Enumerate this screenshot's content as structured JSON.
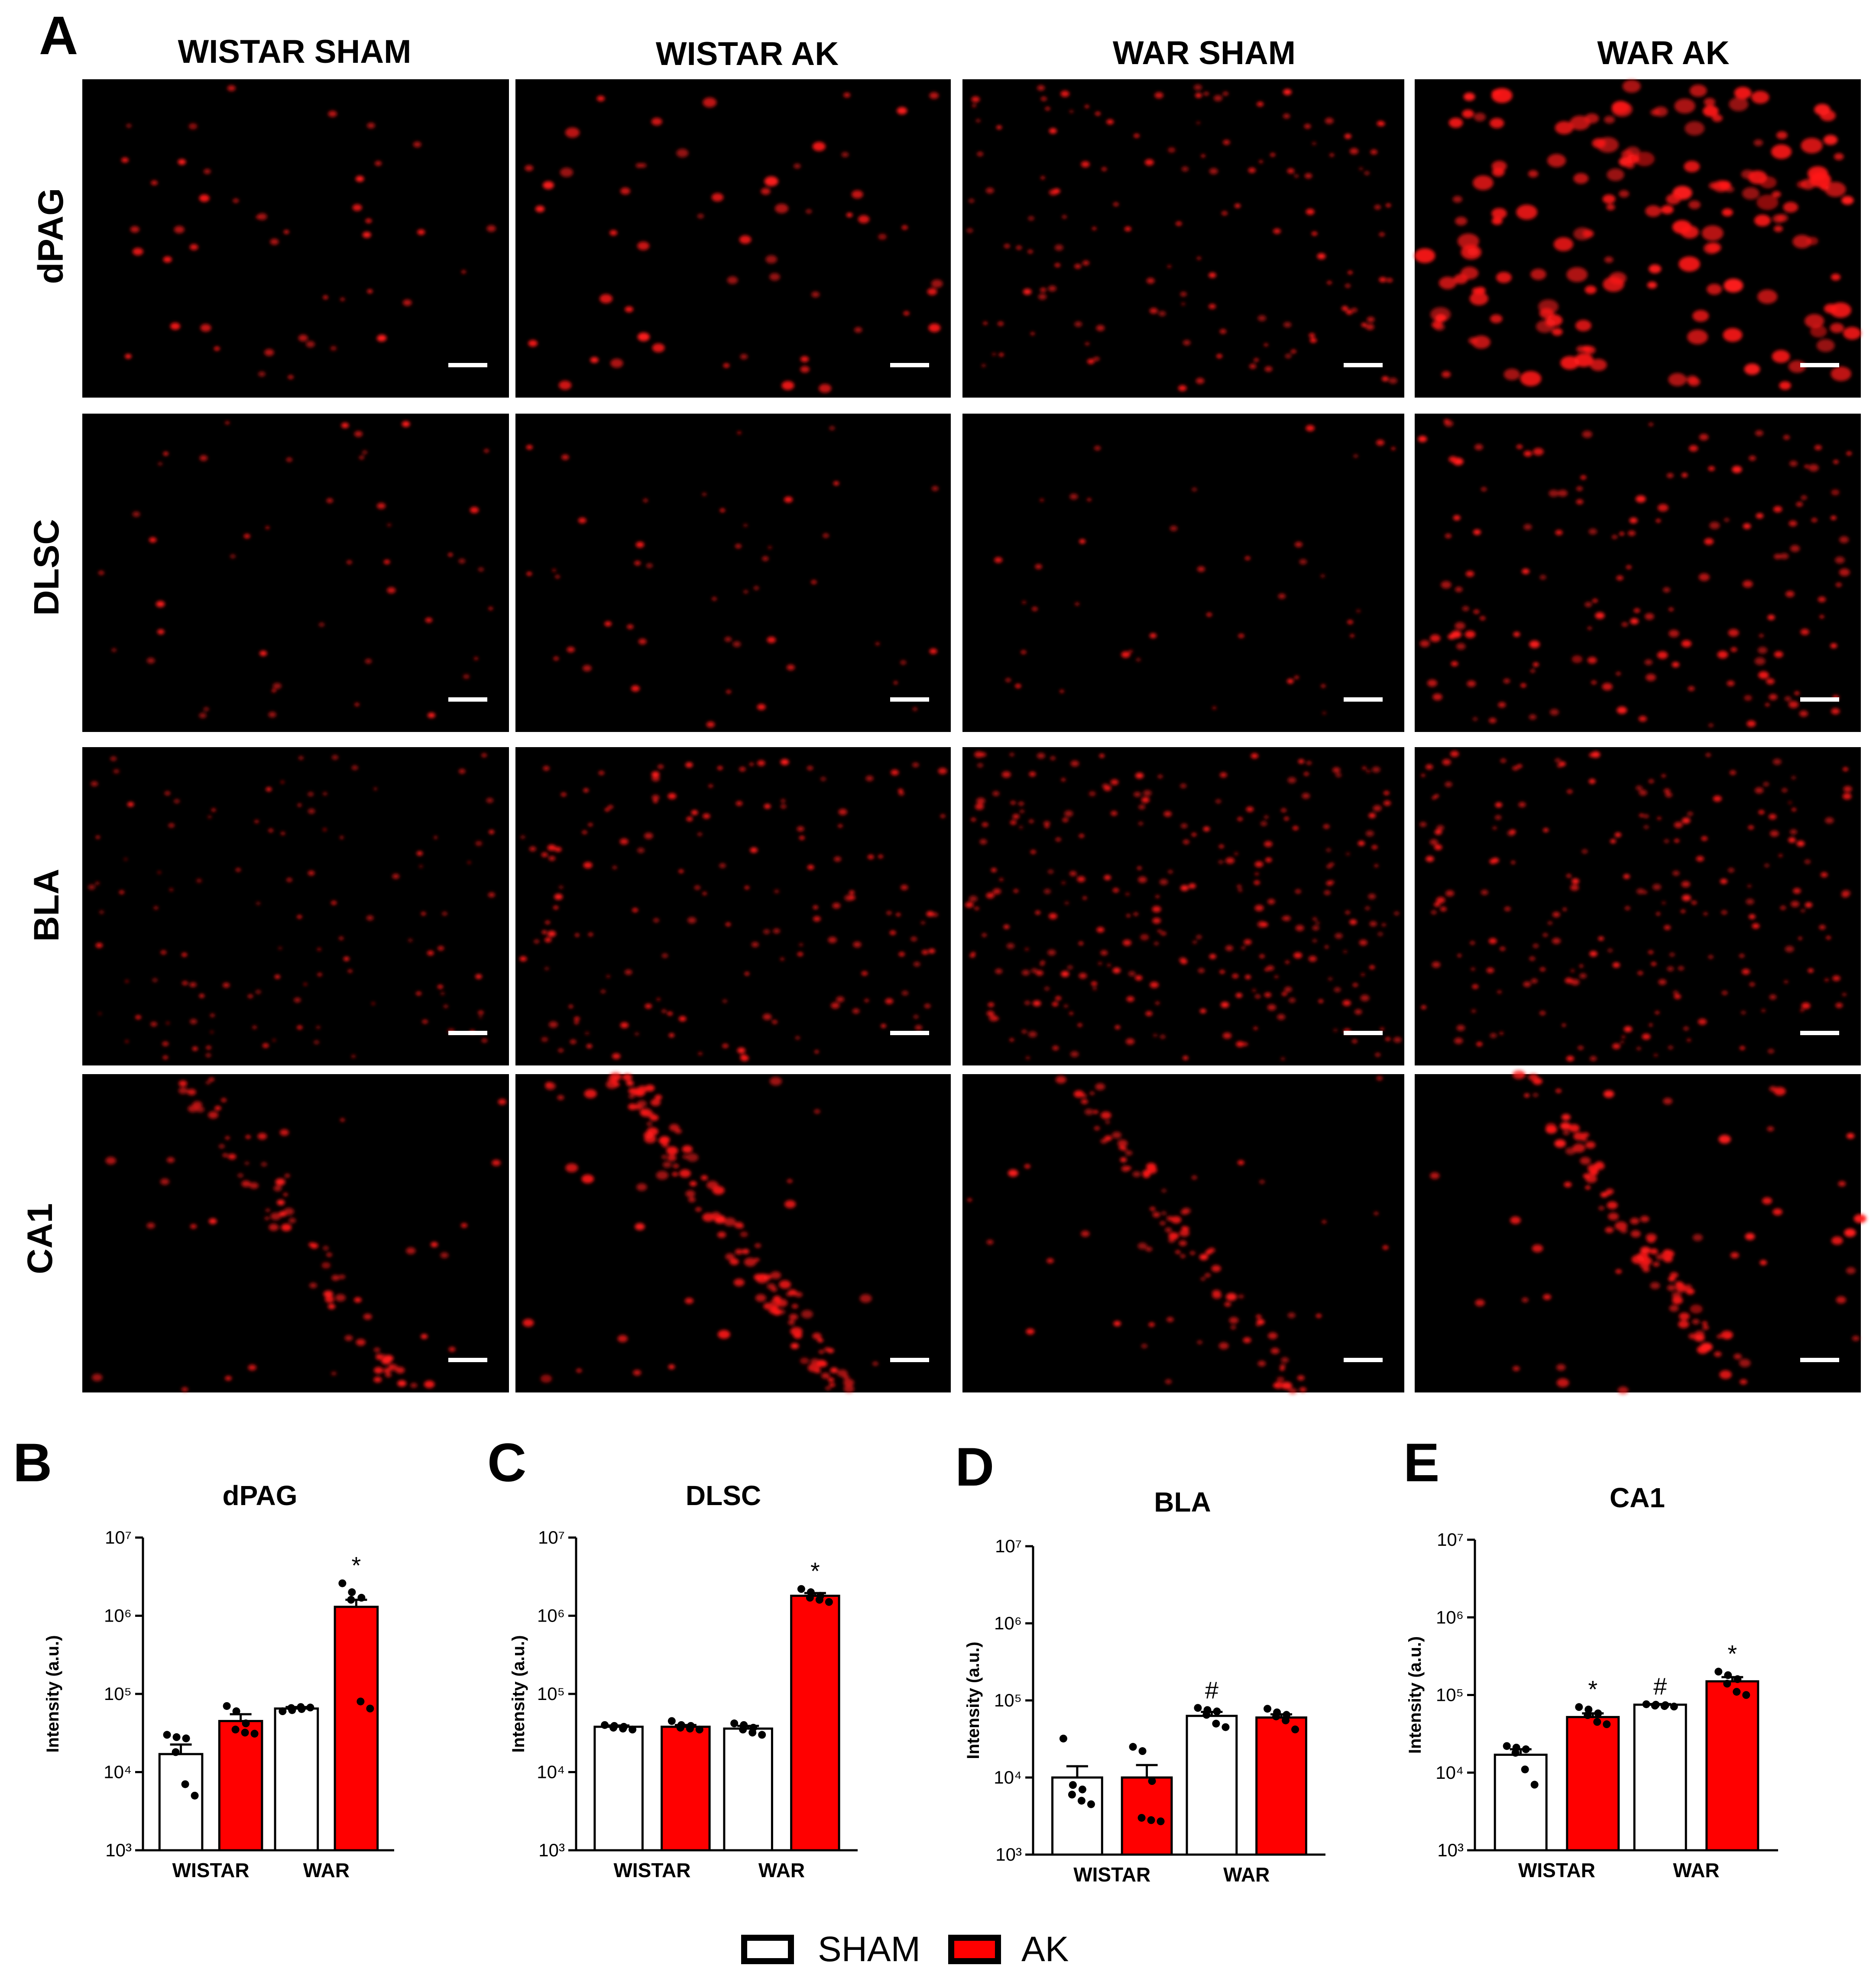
{
  "panel_letters": {
    "A": "A",
    "B": "B",
    "C": "C",
    "D": "D",
    "E": "E"
  },
  "micrographs": {
    "columns": [
      "WISTAR SHAM",
      "WISTAR AK",
      "WAR SHAM",
      "WAR AK"
    ],
    "rows": [
      "dPAG",
      "DLSC",
      "BLA",
      "CA1"
    ],
    "colors": {
      "background": "#000000",
      "signal": "#ff1a1a",
      "scale_bar": "#ffffff"
    }
  },
  "legend": {
    "sham": "SHAM",
    "ak": "AK"
  },
  "colors": {
    "sham_fill": "#ffffff",
    "ak_fill": "#ff0000",
    "bar_stroke": "#000000",
    "dot": "#000000"
  },
  "chart_data": [
    {
      "panel": "B",
      "type": "bar",
      "title": "dPAG",
      "ylabel": "Intensity (a.u.)",
      "xlabel": "",
      "yscale": "log",
      "ylim": [
        1000,
        10000000
      ],
      "yticks": [
        "10³",
        "10⁴",
        "10⁵",
        "10⁶",
        "10⁷"
      ],
      "categories": [
        "WISTAR",
        "WAR"
      ],
      "series": [
        {
          "name": "SHAM",
          "values": [
            17000,
            65000
          ],
          "sem": [
            5500,
            3000
          ],
          "points": [
            [
              30000,
              28000,
              27000,
              18000,
              7000,
              5000
            ],
            [
              60000,
              62000,
              64000,
              66000,
              68000,
              67000
            ]
          ],
          "annotations": [
            "",
            ""
          ]
        },
        {
          "name": "AK",
          "values": [
            45000,
            1300000
          ],
          "sem": [
            10000,
            300000
          ],
          "points": [
            [
              70000,
              60000,
              42000,
              35000,
              32000,
              31000
            ],
            [
              2600000,
              2000000,
              1700000,
              1600000,
              80000,
              65000
            ]
          ],
          "annotations": [
            "",
            "*"
          ]
        }
      ]
    },
    {
      "panel": "C",
      "type": "bar",
      "title": "DLSC",
      "ylabel": "Intensity (a.u.)",
      "xlabel": "",
      "yscale": "log",
      "ylim": [
        1000,
        10000000
      ],
      "yticks": [
        "10³",
        "10⁴",
        "10⁵",
        "10⁶",
        "10⁷"
      ],
      "categories": [
        "WISTAR",
        "WAR"
      ],
      "series": [
        {
          "name": "SHAM",
          "values": [
            38000,
            36000
          ],
          "sem": [
            1500,
            3000
          ],
          "points": [
            [
              40000,
              39000,
              38000,
              37000,
              36000,
              35000
            ],
            [
              42000,
              40000,
              37000,
              35000,
              32000,
              30000
            ]
          ],
          "annotations": [
            "",
            ""
          ]
        },
        {
          "name": "AK",
          "values": [
            38000,
            1800000
          ],
          "sem": [
            2000,
            150000
          ],
          "points": [
            [
              45000,
              40000,
              39000,
              37000,
              36000,
              35000
            ],
            [
              2200000,
              2000000,
              1800000,
              1700000,
              1600000,
              1500000
            ]
          ],
          "annotations": [
            "",
            "*"
          ]
        }
      ]
    },
    {
      "panel": "D",
      "type": "bar",
      "title": "BLA",
      "ylabel": "Intensity (a.u.)",
      "xlabel": "",
      "yscale": "log",
      "ylim": [
        1000,
        10000000
      ],
      "yticks": [
        "10³",
        "10⁴",
        "10⁵",
        "10⁶",
        "10⁷"
      ],
      "categories": [
        "WISTAR",
        "WAR"
      ],
      "series": [
        {
          "name": "SHAM",
          "values": [
            10000,
            63000
          ],
          "sem": [
            4000,
            8000
          ],
          "points": [
            [
              32000,
              8000,
              7000,
              6000,
              5000,
              4500
            ],
            [
              80000,
              75000,
              72000,
              65000,
              50000,
              45000
            ]
          ],
          "annotations": [
            "",
            "#"
          ]
        },
        {
          "name": "AK",
          "values": [
            10000,
            60000
          ],
          "sem": [
            4500,
            6000
          ],
          "points": [
            [
              25000,
              22000,
              9000,
              3000,
              2800,
              2700
            ],
            [
              78000,
              70000,
              65000,
              62000,
              55000,
              42000
            ]
          ],
          "annotations": [
            "",
            ""
          ]
        }
      ]
    },
    {
      "panel": "E",
      "type": "bar",
      "title": "CA1",
      "ylabel": "Intensity (a.u.)",
      "xlabel": "",
      "yscale": "log",
      "ylim": [
        1000,
        10000000
      ],
      "yticks": [
        "10³",
        "10⁴",
        "10⁵",
        "10⁶",
        "10⁷"
      ],
      "categories": [
        "WISTAR",
        "WAR"
      ],
      "series": [
        {
          "name": "SHAM",
          "values": [
            17000,
            75000
          ],
          "sem": [
            3000,
            1500
          ],
          "points": [
            [
              22000,
              21000,
              20000,
              18000,
              11000,
              7000
            ],
            [
              76000,
              75000,
              74000,
              73000,
              72000,
              71000
            ]
          ],
          "annotations": [
            "",
            "#"
          ]
        },
        {
          "name": "AK",
          "values": [
            52000,
            150000
          ],
          "sem": [
            6000,
            20000
          ],
          "points": [
            [
              70000,
              65000,
              58000,
              55000,
              45000,
              42000
            ],
            [
              200000,
              180000,
              160000,
              140000,
              110000,
              100000
            ]
          ],
          "annotations": [
            "*",
            "*"
          ]
        }
      ]
    }
  ]
}
